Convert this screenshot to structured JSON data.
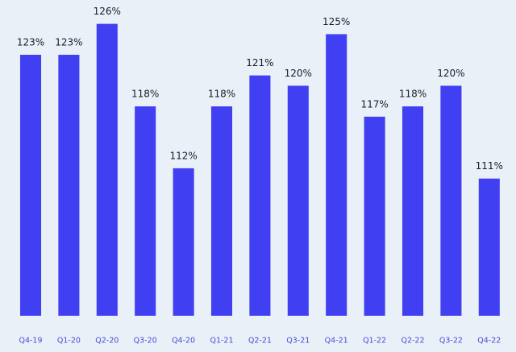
{
  "chart_data": {
    "type": "bar",
    "categories": [
      "Q4-19",
      "Q1-20",
      "Q2-20",
      "Q3-20",
      "Q4-20",
      "Q1-21",
      "Q2-21",
      "Q3-21",
      "Q4-21",
      "Q1-22",
      "Q2-22",
      "Q3-22",
      "Q4-22"
    ],
    "values": [
      123,
      123,
      126,
      118,
      112,
      118,
      121,
      120,
      125,
      117,
      118,
      120,
      111
    ],
    "value_labels": [
      "123%",
      "123%",
      "126%",
      "118%",
      "112%",
      "118%",
      "121%",
      "120%",
      "125%",
      "117%",
      "118%",
      "120%",
      "111%"
    ],
    "color": "#4040f2",
    "ylim": [
      97.7,
      128
    ]
  }
}
